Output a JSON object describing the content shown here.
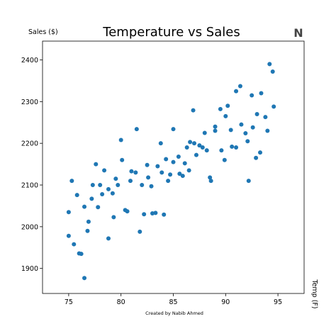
{
  "chart_data": {
    "type": "scatter",
    "title": "Temperature vs Sales",
    "ylabel": "Sales ($)",
    "xlabel": "Temp (F)",
    "credit": "Created by Nabib Ahmed",
    "logo_text": "N",
    "xlim": [
      72.5,
      97.5
    ],
    "ylim": [
      1840,
      2445
    ],
    "xticks": [
      75,
      80,
      85,
      90,
      95
    ],
    "yticks": [
      1900,
      2000,
      2100,
      2200,
      2300,
      2400
    ],
    "grid": false,
    "marker_color": "#1f77b4",
    "points": [
      {
        "x": 75.0,
        "y": 2035
      },
      {
        "x": 75.0,
        "y": 1978
      },
      {
        "x": 75.3,
        "y": 2110
      },
      {
        "x": 75.5,
        "y": 1958
      },
      {
        "x": 75.8,
        "y": 2076
      },
      {
        "x": 76.0,
        "y": 1936
      },
      {
        "x": 76.2,
        "y": 1935
      },
      {
        "x": 76.5,
        "y": 1877
      },
      {
        "x": 76.5,
        "y": 2048
      },
      {
        "x": 76.8,
        "y": 1990
      },
      {
        "x": 76.9,
        "y": 2012
      },
      {
        "x": 77.2,
        "y": 2067
      },
      {
        "x": 77.3,
        "y": 2100
      },
      {
        "x": 77.6,
        "y": 2150
      },
      {
        "x": 77.8,
        "y": 2047
      },
      {
        "x": 78.0,
        "y": 2100
      },
      {
        "x": 78.2,
        "y": 2078
      },
      {
        "x": 78.4,
        "y": 2135
      },
      {
        "x": 78.8,
        "y": 1972
      },
      {
        "x": 78.8,
        "y": 2090
      },
      {
        "x": 79.2,
        "y": 2080
      },
      {
        "x": 79.3,
        "y": 2023
      },
      {
        "x": 79.5,
        "y": 2115
      },
      {
        "x": 79.7,
        "y": 2100
      },
      {
        "x": 80.0,
        "y": 2208
      },
      {
        "x": 80.1,
        "y": 2160
      },
      {
        "x": 80.4,
        "y": 2040
      },
      {
        "x": 80.6,
        "y": 2037
      },
      {
        "x": 80.9,
        "y": 2110
      },
      {
        "x": 81.0,
        "y": 2133
      },
      {
        "x": 81.4,
        "y": 2130
      },
      {
        "x": 81.5,
        "y": 2234
      },
      {
        "x": 81.8,
        "y": 1988
      },
      {
        "x": 82.0,
        "y": 2100
      },
      {
        "x": 82.2,
        "y": 2030
      },
      {
        "x": 82.5,
        "y": 2148
      },
      {
        "x": 82.6,
        "y": 2118
      },
      {
        "x": 82.9,
        "y": 2097
      },
      {
        "x": 83.0,
        "y": 2032
      },
      {
        "x": 83.3,
        "y": 2033
      },
      {
        "x": 83.5,
        "y": 2145
      },
      {
        "x": 83.8,
        "y": 2200
      },
      {
        "x": 83.9,
        "y": 2130
      },
      {
        "x": 84.1,
        "y": 2029
      },
      {
        "x": 84.3,
        "y": 2162
      },
      {
        "x": 84.5,
        "y": 2110
      },
      {
        "x": 84.7,
        "y": 2125
      },
      {
        "x": 85.0,
        "y": 2234
      },
      {
        "x": 85.0,
        "y": 2155
      },
      {
        "x": 85.5,
        "y": 2168
      },
      {
        "x": 85.6,
        "y": 2127
      },
      {
        "x": 85.9,
        "y": 2122
      },
      {
        "x": 86.1,
        "y": 2152
      },
      {
        "x": 86.3,
        "y": 2190
      },
      {
        "x": 86.5,
        "y": 2135
      },
      {
        "x": 86.6,
        "y": 2203
      },
      {
        "x": 86.9,
        "y": 2279
      },
      {
        "x": 87.0,
        "y": 2200
      },
      {
        "x": 87.2,
        "y": 2172
      },
      {
        "x": 87.5,
        "y": 2195
      },
      {
        "x": 87.8,
        "y": 2190
      },
      {
        "x": 88.0,
        "y": 2225
      },
      {
        "x": 88.2,
        "y": 2183
      },
      {
        "x": 88.5,
        "y": 2118
      },
      {
        "x": 88.6,
        "y": 2110
      },
      {
        "x": 89.0,
        "y": 2230
      },
      {
        "x": 89.0,
        "y": 2240
      },
      {
        "x": 89.5,
        "y": 2282
      },
      {
        "x": 89.6,
        "y": 2183
      },
      {
        "x": 89.9,
        "y": 2160
      },
      {
        "x": 90.0,
        "y": 2265
      },
      {
        "x": 90.2,
        "y": 2290
      },
      {
        "x": 90.5,
        "y": 2232
      },
      {
        "x": 90.6,
        "y": 2192
      },
      {
        "x": 91.0,
        "y": 2190
      },
      {
        "x": 91.0,
        "y": 2325
      },
      {
        "x": 91.4,
        "y": 2337
      },
      {
        "x": 91.5,
        "y": 2245
      },
      {
        "x": 91.9,
        "y": 2224
      },
      {
        "x": 92.1,
        "y": 2205
      },
      {
        "x": 92.2,
        "y": 2110
      },
      {
        "x": 92.5,
        "y": 2315
      },
      {
        "x": 92.6,
        "y": 2238
      },
      {
        "x": 92.9,
        "y": 2165
      },
      {
        "x": 93.0,
        "y": 2270
      },
      {
        "x": 93.3,
        "y": 2178
      },
      {
        "x": 93.4,
        "y": 2320
      },
      {
        "x": 93.8,
        "y": 2263
      },
      {
        "x": 94.0,
        "y": 2230
      },
      {
        "x": 94.2,
        "y": 2390
      },
      {
        "x": 94.5,
        "y": 2372
      },
      {
        "x": 94.6,
        "y": 2288
      }
    ]
  }
}
